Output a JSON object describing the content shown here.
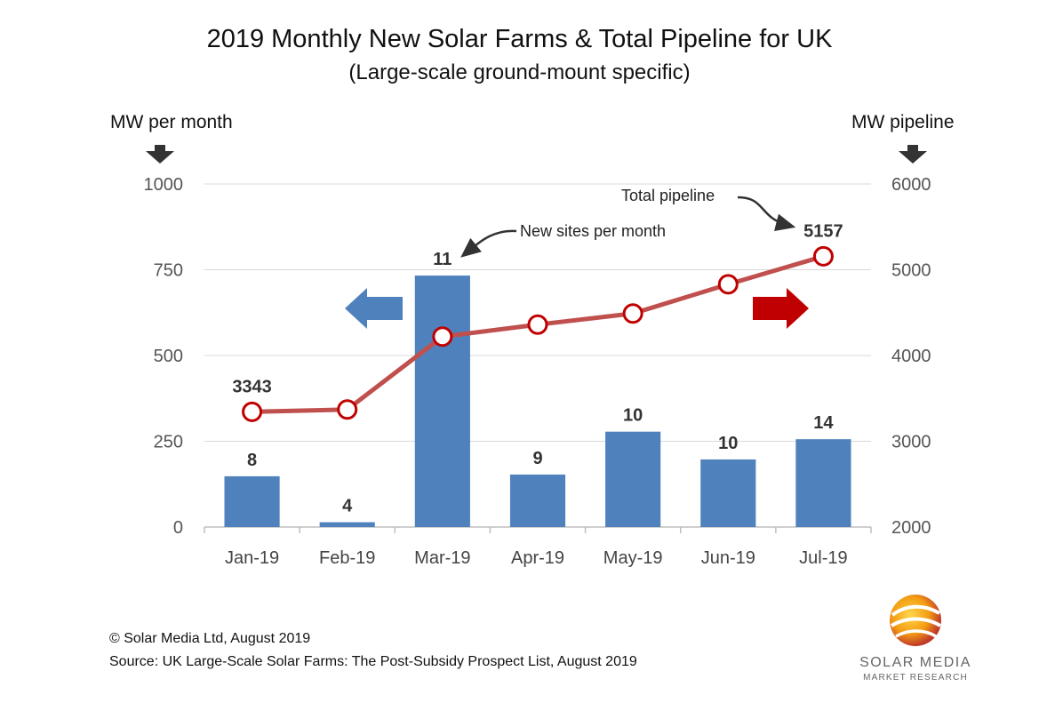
{
  "title": "2019 Monthly New Solar Farms & Total Pipeline for UK",
  "subtitle": "(Large-scale ground-mount specific)",
  "left_axis_title": "MW per month",
  "right_axis_title": "MW pipeline",
  "annotations": {
    "bars": "New sites per month",
    "line": "Total pipeline"
  },
  "footer": {
    "copyright": "© Solar Media Ltd, August 2019",
    "source": "Source: UK Large-Scale Solar Farms: The Post-Subsidy Prospect List, August 2019"
  },
  "logo": {
    "name": "SOLAR MEDIA",
    "tagline": "MARKET RESEARCH"
  },
  "colors": {
    "bar": "#4f81bd",
    "line": "#c0504d",
    "left_arrow": "#4f81bd",
    "right_arrow": "#c00000"
  },
  "chart_data": {
    "type": "bar+line",
    "categories": [
      "Jan-19",
      "Feb-19",
      "Mar-19",
      "Apr-19",
      "May-19",
      "Jun-19",
      "Jul-19"
    ],
    "series": [
      {
        "type": "bar",
        "axis": "left",
        "values": [
          148,
          14,
          733,
          153,
          278,
          197,
          256
        ],
        "data_labels": [
          "8",
          "4",
          "11",
          "9",
          "10",
          "10",
          "14"
        ]
      },
      {
        "type": "line",
        "axis": "right",
        "values": [
          3343,
          3370,
          4220,
          4360,
          4490,
          4830,
          5157
        ],
        "data_labels": [
          "3343",
          "",
          "",
          "",
          "",
          "",
          "5157"
        ]
      }
    ],
    "left_axis": {
      "ylim": [
        0,
        1000
      ],
      "ticks": [
        0,
        250,
        500,
        750,
        1000
      ]
    },
    "right_axis": {
      "ylim": [
        2000,
        6000
      ],
      "ticks": [
        2000,
        3000,
        4000,
        5000,
        6000
      ]
    },
    "gridlines": true
  }
}
